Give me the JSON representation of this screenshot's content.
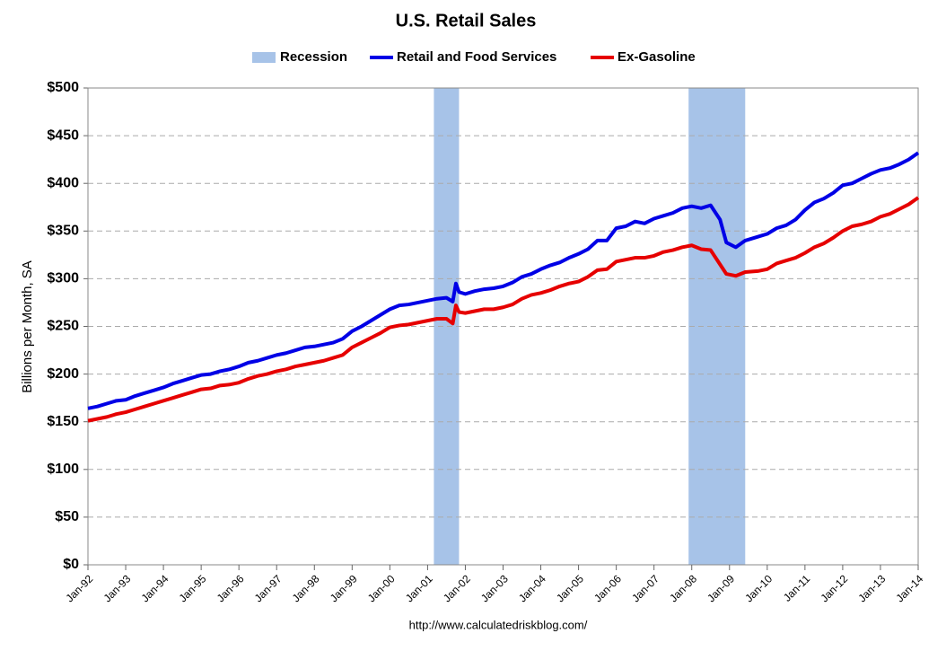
{
  "chart_data": {
    "type": "line",
    "title": "U.S. Retail Sales",
    "y_label": "Billions per Month, SA",
    "source": "http://www.calculatedriskblog.com/",
    "grid": true,
    "ylim": [
      0,
      500
    ],
    "yticks": [
      {
        "value": 0,
        "label": "$0"
      },
      {
        "value": 50,
        "label": "$50"
      },
      {
        "value": 100,
        "label": "$100"
      },
      {
        "value": 150,
        "label": "$150"
      },
      {
        "value": 200,
        "label": "$200"
      },
      {
        "value": 250,
        "label": "$250"
      },
      {
        "value": 300,
        "label": "$300"
      },
      {
        "value": 350,
        "label": "$350"
      },
      {
        "value": 400,
        "label": "$400"
      },
      {
        "value": 450,
        "label": "$450"
      },
      {
        "value": 500,
        "label": "$500"
      }
    ],
    "xlim": [
      "Jan-92",
      "Jan-14"
    ],
    "xticks": [
      "Jan-92",
      "Jan-93",
      "Jan-94",
      "Jan-95",
      "Jan-96",
      "Jan-97",
      "Jan-98",
      "Jan-99",
      "Jan-00",
      "Jan-01",
      "Jan-02",
      "Jan-03",
      "Jan-04",
      "Jan-05",
      "Jan-06",
      "Jan-07",
      "Jan-08",
      "Jan-09",
      "Jan-10",
      "Jan-11",
      "Jan-12",
      "Jan-13",
      "Jan-14"
    ],
    "recession": {
      "name": "Recession",
      "color": "#a7c3e8",
      "periods": [
        {
          "start": "Mar-01",
          "end": "Nov-01"
        },
        {
          "start": "Dec-07",
          "end": "Jun-09"
        }
      ]
    },
    "x": [
      "Jan-92",
      "Apr-92",
      "Jul-92",
      "Oct-92",
      "Jan-93",
      "Apr-93",
      "Jul-93",
      "Oct-93",
      "Jan-94",
      "Apr-94",
      "Jul-94",
      "Oct-94",
      "Jan-95",
      "Apr-95",
      "Jul-95",
      "Oct-95",
      "Jan-96",
      "Apr-96",
      "Jul-96",
      "Oct-96",
      "Jan-97",
      "Apr-97",
      "Jul-97",
      "Oct-97",
      "Jan-98",
      "Apr-98",
      "Jul-98",
      "Oct-98",
      "Jan-99",
      "Apr-99",
      "Jul-99",
      "Oct-99",
      "Jan-00",
      "Apr-00",
      "Jul-00",
      "Oct-00",
      "Jan-01",
      "Apr-01",
      "Jul-01",
      "Sep-01",
      "Oct-01",
      "Nov-01",
      "Jan-02",
      "Apr-02",
      "Jul-02",
      "Oct-02",
      "Jan-03",
      "Apr-03",
      "Jul-03",
      "Oct-03",
      "Jan-04",
      "Apr-04",
      "Jul-04",
      "Oct-04",
      "Jan-05",
      "Apr-05",
      "Jul-05",
      "Oct-05",
      "Jan-06",
      "Apr-06",
      "Jul-06",
      "Oct-06",
      "Jan-07",
      "Apr-07",
      "Jul-07",
      "Oct-07",
      "Jan-08",
      "Apr-08",
      "Jul-08",
      "Oct-08",
      "Dec-08",
      "Mar-09",
      "Jun-09",
      "Oct-09",
      "Jan-10",
      "Apr-10",
      "Jul-10",
      "Oct-10",
      "Jan-11",
      "Apr-11",
      "Jul-11",
      "Oct-11",
      "Jan-12",
      "Apr-12",
      "Jul-12",
      "Oct-12",
      "Jan-13",
      "Apr-13",
      "Jul-13",
      "Oct-13",
      "Jan-14"
    ],
    "series": [
      {
        "name": "Retail and Food Services",
        "color": "#0000e6",
        "values": [
          164,
          166,
          169,
          172,
          173,
          177,
          180,
          183,
          186,
          190,
          193,
          196,
          199,
          200,
          203,
          205,
          208,
          212,
          214,
          217,
          220,
          222,
          225,
          228,
          229,
          231,
          233,
          237,
          245,
          250,
          256,
          262,
          268,
          272,
          273,
          275,
          277,
          279,
          280,
          276,
          295,
          286,
          284,
          287,
          289,
          290,
          292,
          296,
          302,
          305,
          310,
          314,
          317,
          322,
          326,
          331,
          340,
          340,
          353,
          355,
          360,
          358,
          363,
          366,
          369,
          374,
          376,
          374,
          377,
          362,
          338,
          333,
          340,
          344,
          347,
          353,
          356,
          362,
          372,
          380,
          384,
          390,
          398,
          400,
          405,
          410,
          414,
          416,
          420,
          425,
          432
        ]
      },
      {
        "name": "Ex-Gasoline",
        "color": "#e60000",
        "values": [
          151,
          153,
          155,
          158,
          160,
          163,
          166,
          169,
          172,
          175,
          178,
          181,
          184,
          185,
          188,
          189,
          191,
          195,
          198,
          200,
          203,
          205,
          208,
          210,
          212,
          214,
          217,
          220,
          228,
          233,
          238,
          243,
          249,
          251,
          252,
          254,
          256,
          258,
          258,
          253,
          272,
          265,
          264,
          266,
          268,
          268,
          270,
          273,
          279,
          283,
          285,
          288,
          292,
          295,
          297,
          302,
          309,
          310,
          318,
          320,
          322,
          322,
          324,
          328,
          330,
          333,
          335,
          331,
          330,
          315,
          305,
          303,
          307,
          308,
          310,
          316,
          319,
          322,
          327,
          333,
          337,
          343,
          350,
          355,
          357,
          360,
          365,
          368,
          373,
          378,
          385
        ]
      }
    ]
  }
}
